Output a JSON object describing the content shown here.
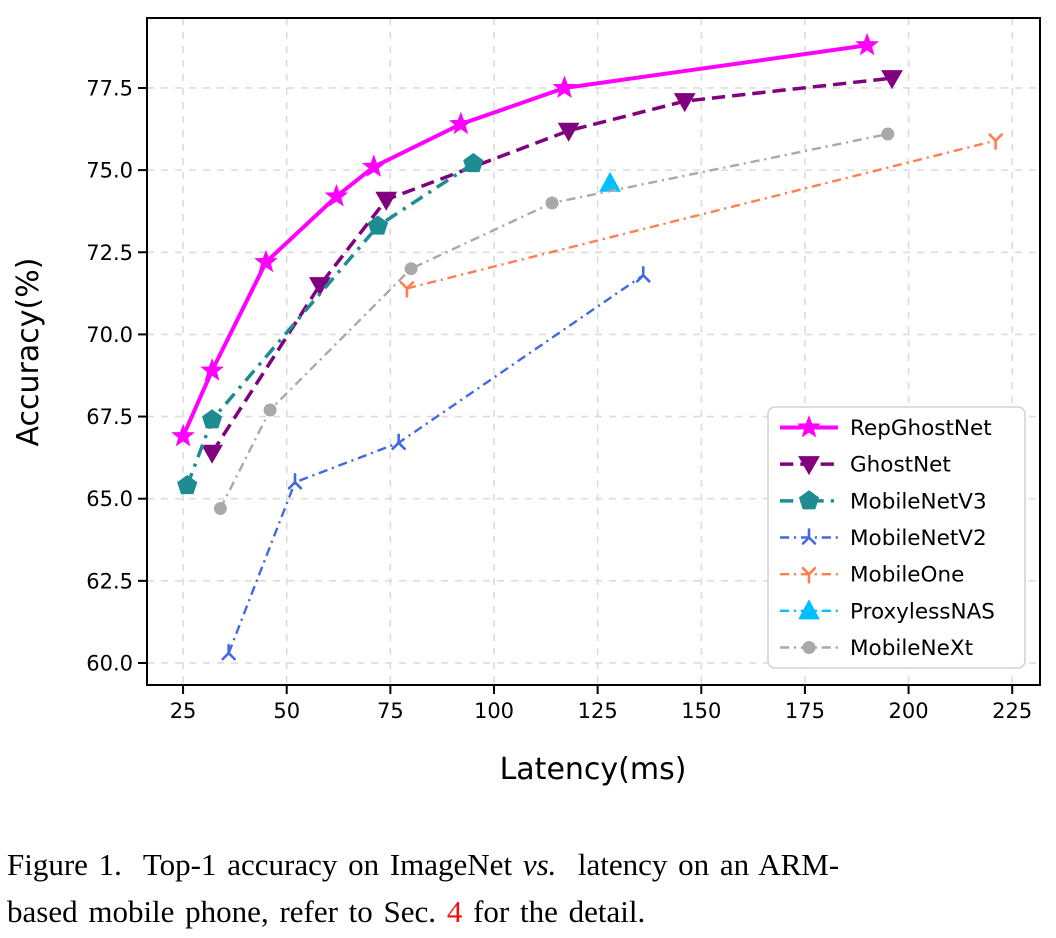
{
  "chart_data": {
    "type": "line",
    "title": "",
    "xlabel": "Latency(ms)",
    "ylabel": "Accuracy(%)",
    "xlim": [
      16.3,
      231.7
    ],
    "ylim": [
      59.33,
      79.63
    ],
    "xticks": [
      25,
      50,
      75,
      100,
      125,
      150,
      175,
      200,
      225
    ],
    "ytick_labels": [
      "60.0",
      "62.5",
      "65.0",
      "67.5",
      "70.0",
      "72.5",
      "75.0",
      "77.5"
    ],
    "grid": true,
    "grid_color": "#dcdcdc",
    "legend_position": "lower right",
    "series": [
      {
        "name": "RepGhostNet",
        "color": "#ff00ff",
        "linestyle": "solid",
        "linewidth": 4,
        "marker": "star",
        "points": [
          [
            25,
            66.9
          ],
          [
            32,
            68.9
          ],
          [
            45,
            72.2
          ],
          [
            62,
            74.2
          ],
          [
            71,
            75.1
          ],
          [
            92,
            76.4
          ],
          [
            117,
            77.5
          ],
          [
            190,
            78.8
          ]
        ]
      },
      {
        "name": "GhostNet",
        "color": "#800080",
        "linestyle": "dashed",
        "linewidth": 3.5,
        "marker": "triangle-down",
        "points": [
          [
            32,
            66.4
          ],
          [
            58,
            71.5
          ],
          [
            74,
            74.1
          ],
          [
            118,
            76.2
          ],
          [
            146,
            77.1
          ],
          [
            196,
            77.8
          ]
        ]
      },
      {
        "name": "MobileNetV3",
        "color": "#1e8c91",
        "linestyle": "dashdot",
        "linewidth": 3.5,
        "marker": "pentagon",
        "points": [
          [
            26,
            65.4
          ],
          [
            32,
            67.4
          ],
          [
            72,
            73.3
          ],
          [
            95,
            75.2
          ]
        ]
      },
      {
        "name": "MobileNetV2",
        "color": "#4169e1",
        "linestyle": "dashdot",
        "linewidth": 2.4,
        "marker": "tri-stem-up",
        "points": [
          [
            36,
            60.3
          ],
          [
            52,
            65.5
          ],
          [
            77,
            66.7
          ],
          [
            136,
            71.8
          ]
        ]
      },
      {
        "name": "MobileOne",
        "color": "#ff7f50",
        "linestyle": "dashdot",
        "linewidth": 2.4,
        "marker": "tri-stem-down",
        "points": [
          [
            79,
            71.4
          ],
          [
            221,
            75.9
          ]
        ]
      },
      {
        "name": "ProxylessNAS",
        "color": "#00bfff",
        "linestyle": "dashdot",
        "linewidth": 2.4,
        "marker": "triangle-up",
        "points": [
          [
            128,
            74.6
          ]
        ]
      },
      {
        "name": "MobileNeXt",
        "color": "#a9a9a9",
        "linestyle": "dashdot",
        "linewidth": 2.4,
        "marker": "circle",
        "points": [
          [
            34,
            64.7
          ],
          [
            46,
            67.7
          ],
          [
            80,
            72.0
          ],
          [
            114,
            74.0
          ],
          [
            195,
            76.1
          ]
        ]
      }
    ]
  },
  "caption": {
    "segments": [
      {
        "text": "Figure 1.  Top-1 accuracy on ImageNet "
      },
      {
        "text": "vs."
      },
      {
        "text": "  latency on an ARM-"
      },
      {
        "text": "based mobile phone, refer to Sec. "
      },
      {
        "text": "4"
      },
      {
        "text": " for the detail."
      }
    ],
    "link_color": "#ee1111"
  }
}
